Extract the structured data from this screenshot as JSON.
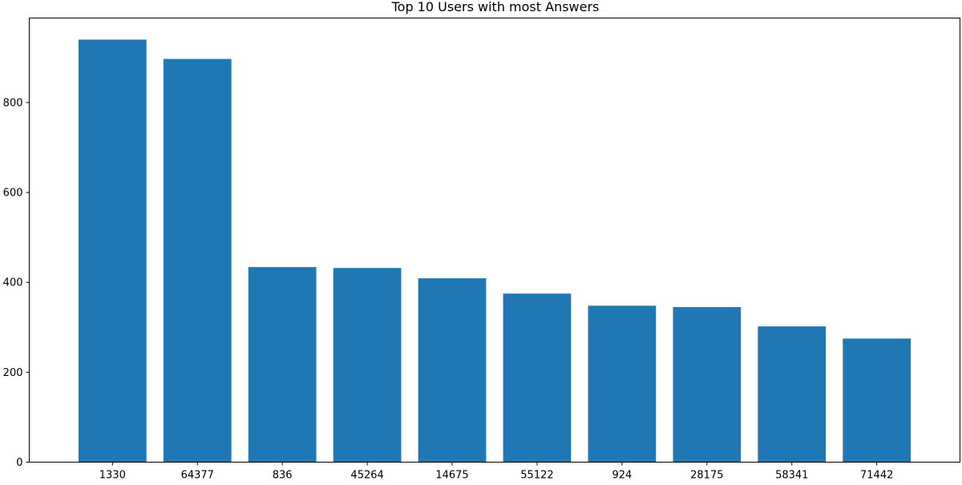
{
  "chart_data": {
    "type": "bar",
    "title": "Top 10 Users with most Answers",
    "xlabel": "",
    "ylabel": "",
    "categories": [
      "1330",
      "64377",
      "836",
      "45264",
      "14675",
      "55122",
      "924",
      "28175",
      "58341",
      "71442"
    ],
    "values": [
      940,
      897,
      434,
      432,
      409,
      375,
      348,
      345,
      302,
      275
    ],
    "ylim": [
      0,
      988
    ],
    "yticks": [
      0,
      200,
      400,
      600,
      800
    ],
    "grid": false,
    "legend": "none",
    "bar_color": "#1f77b4"
  }
}
